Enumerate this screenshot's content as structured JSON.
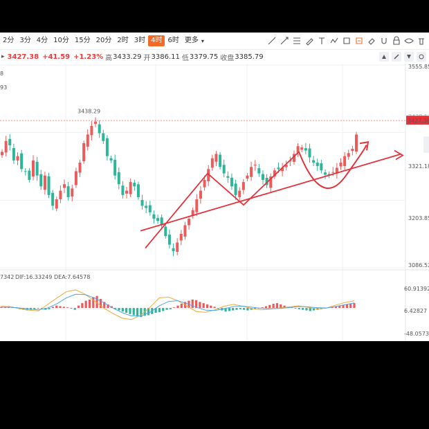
{
  "toolbar": {
    "timeframes": [
      "2分",
      "3分",
      "4分",
      "10分",
      "15分",
      "20分",
      "2时",
      "3时",
      "4时",
      "6时",
      "更多"
    ],
    "active": "4时",
    "more_caret": "▾"
  },
  "quote": {
    "left_marker": "▸",
    "last": "3427.38",
    "change": "+41.59",
    "change_pct": "+1.23%",
    "high_label": "高",
    "high": "3433.29",
    "open_label": "开",
    "open": "3386.11",
    "low_label": "低",
    "low": "3379.75",
    "close_label": "收盘",
    "close": "3385.79"
  },
  "side_fragments": {
    "a": "8",
    "b": "93"
  },
  "price_axis": {
    "ticks": [
      "3555.85",
      "3321.18",
      "3203.85",
      "3086.52"
    ],
    "cur_badge": "3427.38",
    "hidden_tick": "3438.51",
    "peak_label": "3438.29"
  },
  "macd": {
    "left_frag": "7342",
    "dif_label": "DIF:16.33249",
    "dea_label": "DEA:7.64578",
    "ticks": [
      "60.91392",
      "6.42827",
      "-48.05738"
    ]
  },
  "colors": {
    "up": "#ec5b5b",
    "down": "#2db59a",
    "accent": "#f36b2b",
    "trend": "#e5323b",
    "dif": "#f0a93a",
    "dea": "#4aa8e8"
  },
  "chart_data": {
    "type": "candlestick",
    "ylim": [
      3086.52,
      3555.85
    ],
    "last_price": 3427.38,
    "peak_price": 3438.29,
    "yticks": [
      3555.85,
      3321.18,
      3203.85,
      3086.52
    ],
    "path_close": [
      3355,
      3380,
      3370,
      3335,
      3345,
      3315,
      3310,
      3290,
      3335,
      3300,
      3275,
      3300,
      3255,
      3230,
      3245,
      3265,
      3280,
      3250,
      3270,
      3310,
      3330,
      3375,
      3395,
      3415,
      3425,
      3398,
      3380,
      3345,
      3335,
      3300,
      3280,
      3255,
      3265,
      3285,
      3275,
      3250,
      3230,
      3225,
      3215,
      3200,
      3195,
      3185,
      3160,
      3140,
      3125,
      3145,
      3165,
      3185,
      3200,
      3220,
      3245,
      3265,
      3290,
      3315,
      3340,
      3350,
      3320,
      3305,
      3295,
      3275,
      3255,
      3265,
      3285,
      3300,
      3320,
      3325,
      3305,
      3290,
      3278,
      3298,
      3312,
      3315,
      3318,
      3325,
      3335,
      3350,
      3368,
      3365,
      3358,
      3342,
      3330,
      3322,
      3312,
      3302,
      3300,
      3308,
      3318,
      3330,
      3345,
      3352,
      3362,
      3395
    ],
    "macd_hist": [
      2,
      1,
      3,
      2,
      1,
      -2,
      -3,
      -4,
      -3,
      -2,
      -1,
      -2,
      -3,
      -2,
      2,
      4,
      3,
      2,
      1,
      -1,
      -3,
      4,
      8,
      12,
      14,
      18,
      20,
      15,
      10,
      6,
      3,
      -2,
      -4,
      -6,
      -8,
      -10,
      -12,
      -14,
      -15,
      -13,
      -12,
      -10,
      -8,
      -7,
      -5,
      -3,
      -2,
      1,
      4,
      7,
      10,
      12,
      14,
      13,
      10,
      8,
      6,
      4,
      2,
      -2,
      -4,
      -6,
      -5,
      -4,
      -3,
      -2,
      -3,
      -4,
      -3,
      -2,
      -1,
      1,
      3,
      5,
      7,
      8,
      6,
      4,
      2,
      1,
      -1,
      -2,
      -3,
      -4,
      -5,
      -4,
      -3,
      -2,
      -1,
      1,
      2,
      3,
      4,
      5,
      6,
      7,
      8
    ],
    "dif": [
      0.05,
      0.03,
      -0.02,
      -0.06,
      -0.08,
      0.1,
      0.28,
      0.45,
      0.5,
      0.38,
      0.2,
      0.0,
      -0.15,
      -0.28,
      -0.32,
      -0.2,
      0.02,
      0.28,
      0.3,
      0.2,
      0.05,
      -0.1,
      -0.12,
      -0.05,
      0.05,
      0.1,
      0.05,
      -0.02,
      -0.05,
      -0.03,
      0.0,
      0.03,
      0.06,
      0.02,
      -0.03,
      0.0,
      0.08,
      0.15,
      0.2
    ],
    "dea": [
      0.02,
      0.02,
      0.0,
      -0.03,
      -0.05,
      0.0,
      0.12,
      0.28,
      0.38,
      0.37,
      0.28,
      0.15,
      0.0,
      -0.13,
      -0.22,
      -0.22,
      -0.12,
      0.06,
      0.18,
      0.2,
      0.12,
      0.02,
      -0.06,
      -0.07,
      -0.02,
      0.04,
      0.05,
      0.02,
      -0.01,
      -0.02,
      -0.01,
      0.01,
      0.04,
      0.03,
      0.01,
      0.0,
      0.04,
      0.09,
      0.14
    ],
    "trend_line": [
      [
        3172,
        3110
      ],
      [
        3350,
        3395
      ]
    ],
    "w_pattern": [
      3132,
      3305,
      3232,
      3355,
      3285,
      3368
    ],
    "macd_ylim": [
      -48.05738,
      60.91392
    ]
  }
}
